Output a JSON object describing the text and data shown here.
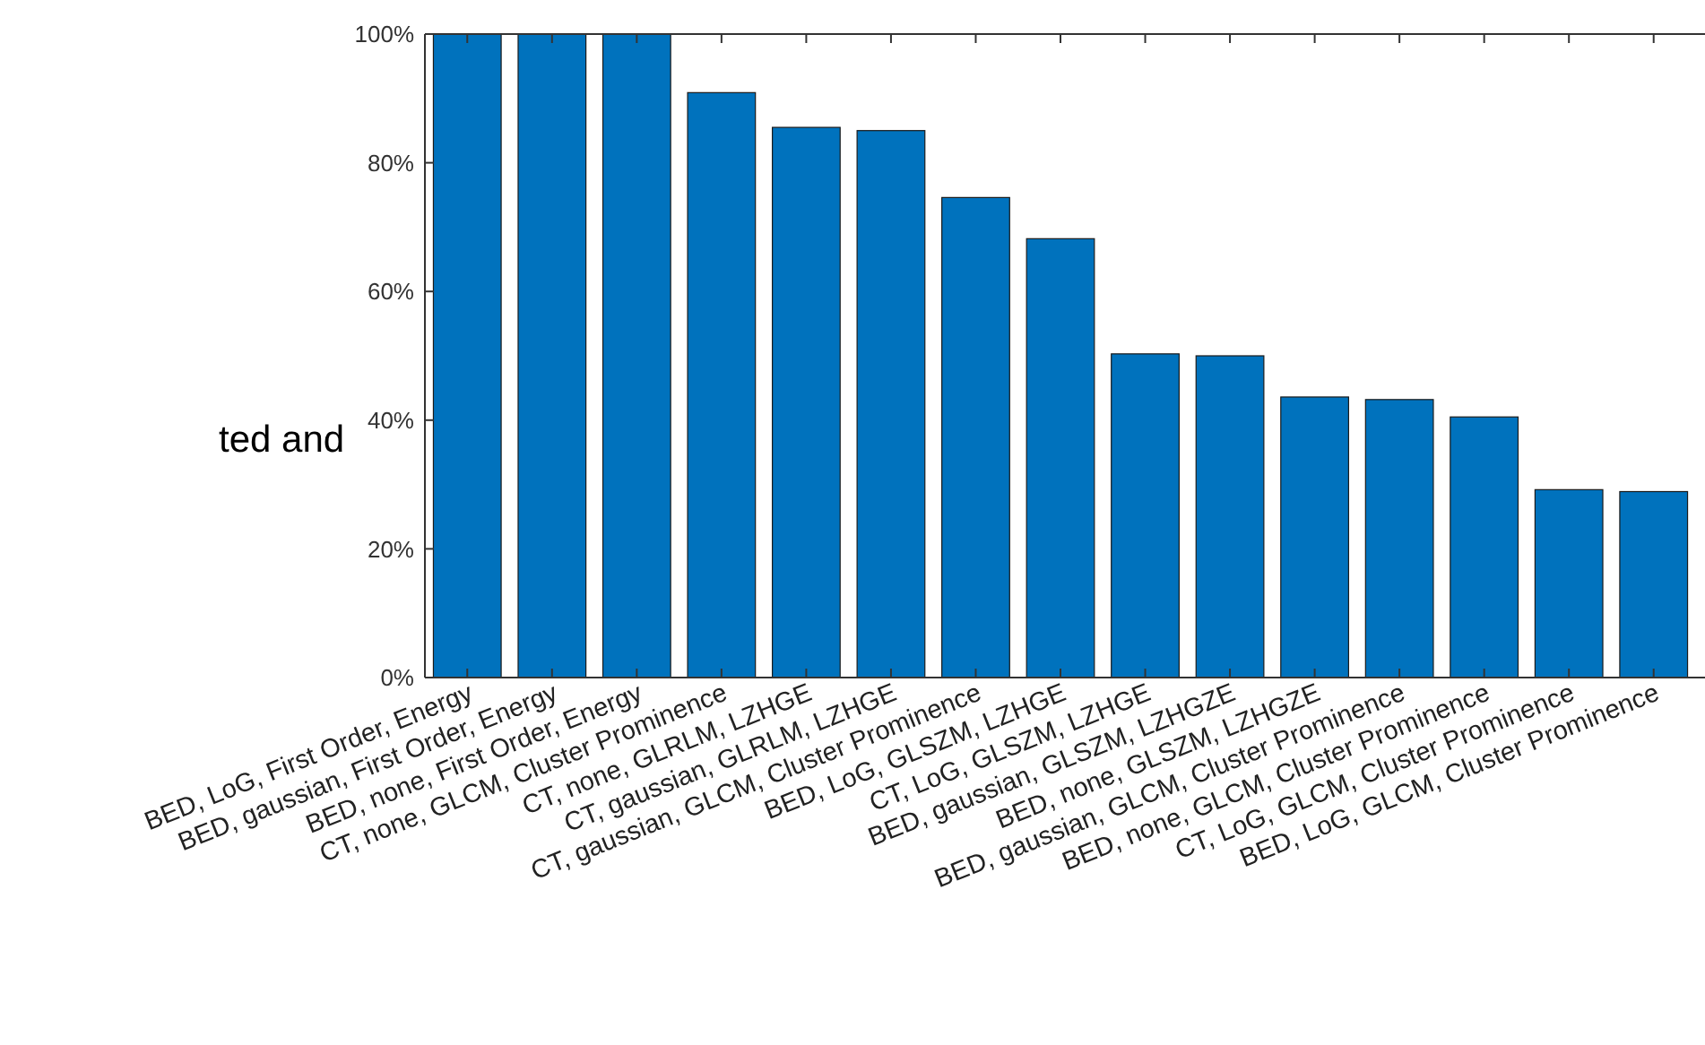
{
  "chart_data": {
    "type": "bar",
    "categories": [
      "BED, LoG, First Order, Energy",
      "BED, gaussian, First Order, Energy",
      "BED, none, First Order, Energy",
      "CT, none, GLCM, Cluster Prominence",
      "CT, none, GLRLM, LZHGE",
      "CT, gaussian, GLRLM, LZHGE",
      "CT, gaussian, GLCM, Cluster Prominence",
      "BED, LoG, GLSZM, LZHGE",
      "CT, LoG, GLSZM, LZHGE",
      "BED, gaussian, GLSZM, LZHGZE",
      "BED, none, GLSZM, LZHGZE",
      "BED, gaussian, GLCM, Cluster Prominence",
      "BED, none, GLCM, Cluster Prominence",
      "CT, LoG, GLCM, Cluster Prominence",
      "BED, LoG, GLCM, Cluster Prominence"
    ],
    "values": [
      100,
      100,
      100,
      90.9,
      85.5,
      85.0,
      74.6,
      68.2,
      50.3,
      50.0,
      43.6,
      43.2,
      40.5,
      29.2,
      28.9
    ],
    "color": "#0072bd",
    "ylim": [
      0,
      100
    ],
    "yticks": [
      {
        "value": 0,
        "label": "0%"
      },
      {
        "value": 20,
        "label": "20%"
      },
      {
        "value": 40,
        "label": "40%"
      },
      {
        "value": 60,
        "label": "60%"
      },
      {
        "value": 80,
        "label": "80%"
      },
      {
        "value": 100,
        "label": "100%"
      }
    ],
    "grid": false,
    "annotations": [
      "ted and"
    ]
  }
}
